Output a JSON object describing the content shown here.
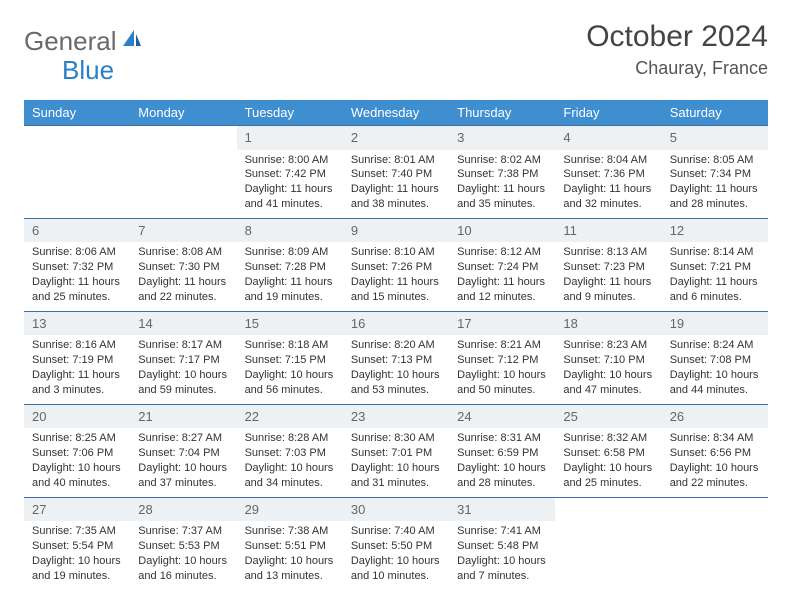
{
  "brand": {
    "part1": "General",
    "part2": "Blue"
  },
  "title": "October 2024",
  "location": "Chauray, France",
  "colors": {
    "header_bg": "#3e8ed0",
    "header_text": "#ffffff",
    "daynum_bg": "#eef1f4",
    "daynum_text": "#666666",
    "divider": "#3e6fa0",
    "body_text": "#333333",
    "logo_gray": "#6a6a6a",
    "logo_blue": "#2a7fc9",
    "background": "#ffffff"
  },
  "typography": {
    "title_fontsize": 30,
    "location_fontsize": 18,
    "dayheader_fontsize": 13,
    "daynum_fontsize": 13,
    "cell_fontsize": 11
  },
  "day_headers": [
    "Sunday",
    "Monday",
    "Tuesday",
    "Wednesday",
    "Thursday",
    "Friday",
    "Saturday"
  ],
  "weeks": [
    [
      {
        "n": "",
        "empty": true
      },
      {
        "n": "",
        "empty": true
      },
      {
        "n": "1",
        "sr": "Sunrise: 8:00 AM",
        "ss": "Sunset: 7:42 PM",
        "dl": "Daylight: 11 hours and 41 minutes."
      },
      {
        "n": "2",
        "sr": "Sunrise: 8:01 AM",
        "ss": "Sunset: 7:40 PM",
        "dl": "Daylight: 11 hours and 38 minutes."
      },
      {
        "n": "3",
        "sr": "Sunrise: 8:02 AM",
        "ss": "Sunset: 7:38 PM",
        "dl": "Daylight: 11 hours and 35 minutes."
      },
      {
        "n": "4",
        "sr": "Sunrise: 8:04 AM",
        "ss": "Sunset: 7:36 PM",
        "dl": "Daylight: 11 hours and 32 minutes."
      },
      {
        "n": "5",
        "sr": "Sunrise: 8:05 AM",
        "ss": "Sunset: 7:34 PM",
        "dl": "Daylight: 11 hours and 28 minutes."
      }
    ],
    [
      {
        "n": "6",
        "sr": "Sunrise: 8:06 AM",
        "ss": "Sunset: 7:32 PM",
        "dl": "Daylight: 11 hours and 25 minutes."
      },
      {
        "n": "7",
        "sr": "Sunrise: 8:08 AM",
        "ss": "Sunset: 7:30 PM",
        "dl": "Daylight: 11 hours and 22 minutes."
      },
      {
        "n": "8",
        "sr": "Sunrise: 8:09 AM",
        "ss": "Sunset: 7:28 PM",
        "dl": "Daylight: 11 hours and 19 minutes."
      },
      {
        "n": "9",
        "sr": "Sunrise: 8:10 AM",
        "ss": "Sunset: 7:26 PM",
        "dl": "Daylight: 11 hours and 15 minutes."
      },
      {
        "n": "10",
        "sr": "Sunrise: 8:12 AM",
        "ss": "Sunset: 7:24 PM",
        "dl": "Daylight: 11 hours and 12 minutes."
      },
      {
        "n": "11",
        "sr": "Sunrise: 8:13 AM",
        "ss": "Sunset: 7:23 PM",
        "dl": "Daylight: 11 hours and 9 minutes."
      },
      {
        "n": "12",
        "sr": "Sunrise: 8:14 AM",
        "ss": "Sunset: 7:21 PM",
        "dl": "Daylight: 11 hours and 6 minutes."
      }
    ],
    [
      {
        "n": "13",
        "sr": "Sunrise: 8:16 AM",
        "ss": "Sunset: 7:19 PM",
        "dl": "Daylight: 11 hours and 3 minutes."
      },
      {
        "n": "14",
        "sr": "Sunrise: 8:17 AM",
        "ss": "Sunset: 7:17 PM",
        "dl": "Daylight: 10 hours and 59 minutes."
      },
      {
        "n": "15",
        "sr": "Sunrise: 8:18 AM",
        "ss": "Sunset: 7:15 PM",
        "dl": "Daylight: 10 hours and 56 minutes."
      },
      {
        "n": "16",
        "sr": "Sunrise: 8:20 AM",
        "ss": "Sunset: 7:13 PM",
        "dl": "Daylight: 10 hours and 53 minutes."
      },
      {
        "n": "17",
        "sr": "Sunrise: 8:21 AM",
        "ss": "Sunset: 7:12 PM",
        "dl": "Daylight: 10 hours and 50 minutes."
      },
      {
        "n": "18",
        "sr": "Sunrise: 8:23 AM",
        "ss": "Sunset: 7:10 PM",
        "dl": "Daylight: 10 hours and 47 minutes."
      },
      {
        "n": "19",
        "sr": "Sunrise: 8:24 AM",
        "ss": "Sunset: 7:08 PM",
        "dl": "Daylight: 10 hours and 44 minutes."
      }
    ],
    [
      {
        "n": "20",
        "sr": "Sunrise: 8:25 AM",
        "ss": "Sunset: 7:06 PM",
        "dl": "Daylight: 10 hours and 40 minutes."
      },
      {
        "n": "21",
        "sr": "Sunrise: 8:27 AM",
        "ss": "Sunset: 7:04 PM",
        "dl": "Daylight: 10 hours and 37 minutes."
      },
      {
        "n": "22",
        "sr": "Sunrise: 8:28 AM",
        "ss": "Sunset: 7:03 PM",
        "dl": "Daylight: 10 hours and 34 minutes."
      },
      {
        "n": "23",
        "sr": "Sunrise: 8:30 AM",
        "ss": "Sunset: 7:01 PM",
        "dl": "Daylight: 10 hours and 31 minutes."
      },
      {
        "n": "24",
        "sr": "Sunrise: 8:31 AM",
        "ss": "Sunset: 6:59 PM",
        "dl": "Daylight: 10 hours and 28 minutes."
      },
      {
        "n": "25",
        "sr": "Sunrise: 8:32 AM",
        "ss": "Sunset: 6:58 PM",
        "dl": "Daylight: 10 hours and 25 minutes."
      },
      {
        "n": "26",
        "sr": "Sunrise: 8:34 AM",
        "ss": "Sunset: 6:56 PM",
        "dl": "Daylight: 10 hours and 22 minutes."
      }
    ],
    [
      {
        "n": "27",
        "sr": "Sunrise: 7:35 AM",
        "ss": "Sunset: 5:54 PM",
        "dl": "Daylight: 10 hours and 19 minutes."
      },
      {
        "n": "28",
        "sr": "Sunrise: 7:37 AM",
        "ss": "Sunset: 5:53 PM",
        "dl": "Daylight: 10 hours and 16 minutes."
      },
      {
        "n": "29",
        "sr": "Sunrise: 7:38 AM",
        "ss": "Sunset: 5:51 PM",
        "dl": "Daylight: 10 hours and 13 minutes."
      },
      {
        "n": "30",
        "sr": "Sunrise: 7:40 AM",
        "ss": "Sunset: 5:50 PM",
        "dl": "Daylight: 10 hours and 10 minutes."
      },
      {
        "n": "31",
        "sr": "Sunrise: 7:41 AM",
        "ss": "Sunset: 5:48 PM",
        "dl": "Daylight: 10 hours and 7 minutes."
      },
      {
        "n": "",
        "empty": true
      },
      {
        "n": "",
        "empty": true
      }
    ]
  ]
}
